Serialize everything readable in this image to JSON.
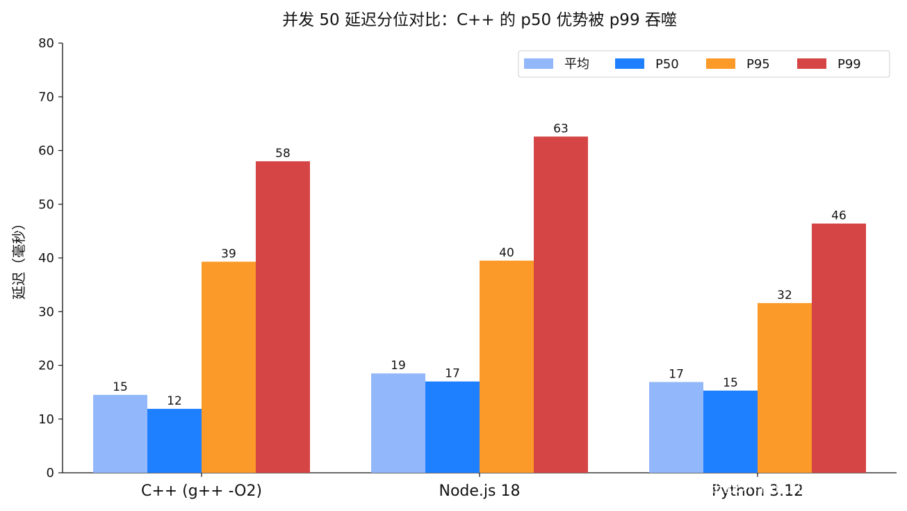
{
  "chart_data": {
    "type": "bar",
    "title": "并发 50 延迟分位对比：C++ 的 p50 优势被 p99 吞噬",
    "xlabel": "",
    "ylabel": "延迟（毫秒）",
    "categories": [
      "C++ (g++ -O2)",
      "Node.js 18",
      "Python 3.12"
    ],
    "ylim": [
      0,
      80
    ],
    "yticks": [
      0,
      10,
      20,
      30,
      40,
      50,
      60,
      70,
      80
    ],
    "series": [
      {
        "name": "平均",
        "color": "#93b7fb",
        "values": [
          14.5,
          18.5,
          16.9
        ],
        "labels": [
          "15",
          "19",
          "17"
        ]
      },
      {
        "name": "P50",
        "color": "#1f80ff",
        "values": [
          11.9,
          17.0,
          15.3
        ],
        "labels": [
          "12",
          "17",
          "15"
        ]
      },
      {
        "name": "P95",
        "color": "#fb9a29",
        "values": [
          39.3,
          39.5,
          31.6
        ],
        "labels": [
          "39",
          "40",
          "32"
        ]
      },
      {
        "name": "P99",
        "color": "#d64545",
        "values": [
          58.0,
          62.6,
          46.4
        ],
        "labels": [
          "58",
          "63",
          "46"
        ]
      }
    ],
    "grid": false,
    "legend_position": "top-right",
    "watermark": "掘金技术社区 @ badhope"
  }
}
